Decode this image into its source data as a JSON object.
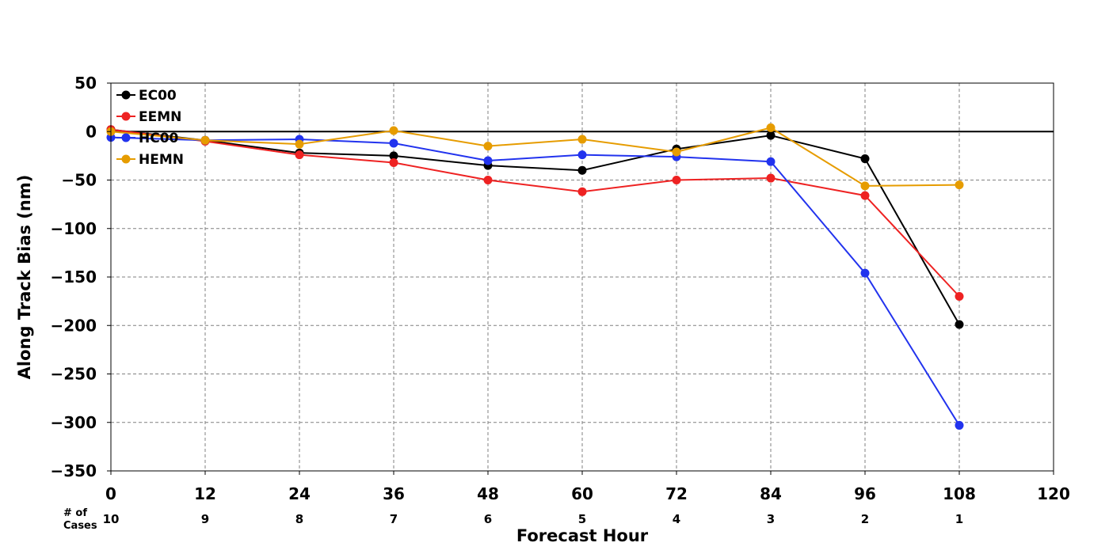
{
  "chart_data": {
    "type": "line",
    "title": "",
    "xlabel": "Forecast Hour",
    "ylabel": "Along Track Bias (nm)",
    "x": [
      0,
      12,
      24,
      36,
      48,
      60,
      72,
      84,
      96,
      108
    ],
    "xlim": [
      0,
      120
    ],
    "ylim": [
      -350,
      50
    ],
    "xticks": [
      0,
      12,
      24,
      36,
      48,
      60,
      72,
      84,
      96,
      108,
      120
    ],
    "yticks": [
      50,
      0,
      -50,
      -100,
      -150,
      -200,
      -250,
      -300,
      -350
    ],
    "xtick_labels": [
      "0",
      "12",
      "24",
      "36",
      "48",
      "60",
      "72",
      "84",
      "96",
      "108",
      "120"
    ],
    "ytick_labels": [
      "50",
      "0",
      "−50",
      "−100",
      "−150",
      "−200",
      "−250",
      "−300",
      "−350"
    ],
    "grid": true,
    "legend_position": "top-left",
    "cases_label": "# of\nCases",
    "cases_title_lines": [
      "# of",
      "Cases"
    ],
    "cases": [
      "10",
      "9",
      "8",
      "7",
      "6",
      "5",
      "4",
      "3",
      "2",
      "1"
    ],
    "series": [
      {
        "name": "EC00",
        "color": "#000000",
        "values": [
          2,
          -9,
          -22,
          -25,
          -35,
          -40,
          -18,
          -4,
          -28,
          -199
        ]
      },
      {
        "name": "EEMN",
        "color": "#ee2222",
        "values": [
          2,
          -10,
          -24,
          -32,
          -50,
          -62,
          -50,
          -48,
          -66,
          -170
        ]
      },
      {
        "name": "HC00",
        "color": "#2233ee",
        "values": [
          -6,
          -9,
          -8,
          -12,
          -30,
          -24,
          -26,
          -31,
          -146,
          -303
        ]
      },
      {
        "name": "HEMN",
        "color": "#e69c00",
        "values": [
          0,
          -9,
          -13,
          1,
          -15,
          -8,
          -21,
          4,
          -56,
          -55
        ]
      }
    ]
  }
}
